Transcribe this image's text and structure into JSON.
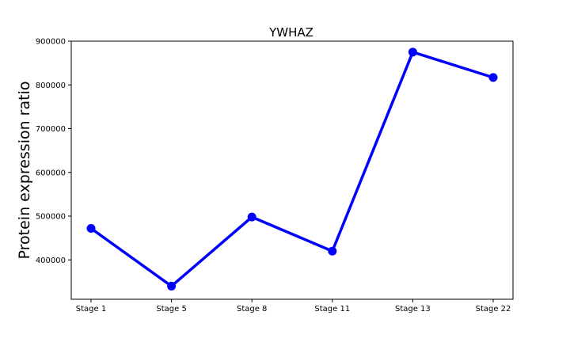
{
  "chart_data": {
    "type": "line",
    "title": "YWHAZ",
    "xlabel": "",
    "ylabel": "Protein expression ratio",
    "categories": [
      "Stage 1",
      "Stage 5",
      "Stage 8",
      "Stage 11",
      "Stage 13",
      "Stage 22"
    ],
    "series": [
      {
        "values": [
          472000,
          340000,
          498000,
          420000,
          875000,
          817000
        ],
        "color": "#0000ff"
      }
    ],
    "ylim": [
      310000,
      900000
    ],
    "yticks": [
      400000,
      500000,
      600000,
      700000,
      800000,
      900000
    ],
    "ytick_labels": [
      "400000",
      "500000",
      "600000",
      "700000",
      "800000",
      "900000"
    ],
    "grid": false,
    "legend": "none"
  }
}
